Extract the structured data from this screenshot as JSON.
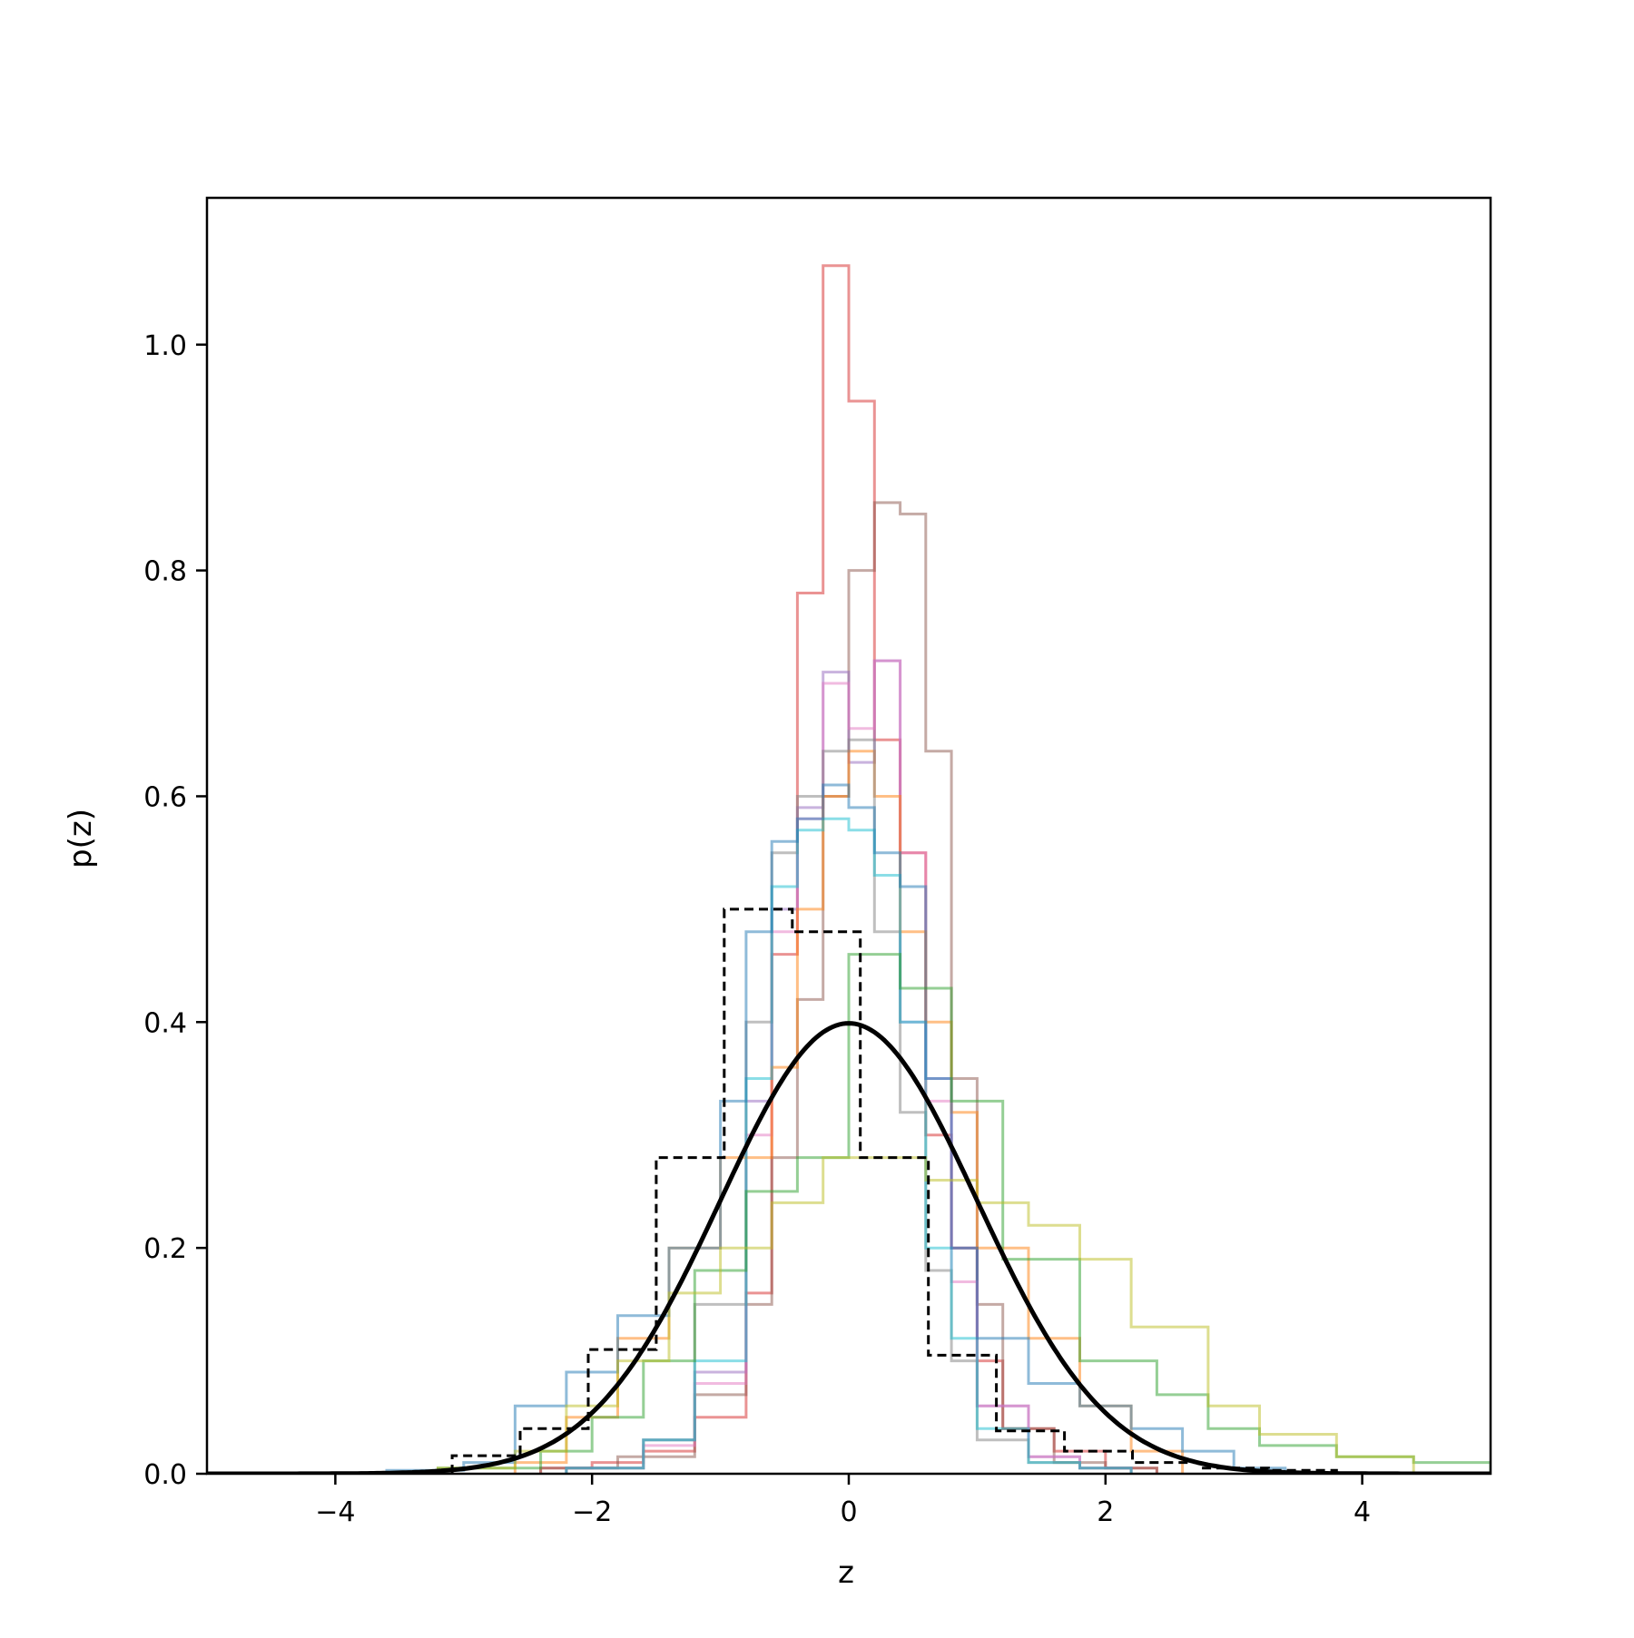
{
  "chart_data": {
    "type": "histogram",
    "title": "",
    "xlabel": "z",
    "ylabel": "p(z)",
    "xlim": [
      -5,
      5
    ],
    "ylim": [
      0,
      1.13
    ],
    "grid": false,
    "legend": "none",
    "xticks": [
      {
        "value": -4,
        "label": "−4"
      },
      {
        "value": -2,
        "label": "−2"
      },
      {
        "value": 0,
        "label": "0"
      },
      {
        "value": 2,
        "label": "2"
      },
      {
        "value": 4,
        "label": "4"
      }
    ],
    "yticks": [
      {
        "value": 0.0,
        "label": "0.0"
      },
      {
        "value": 0.2,
        "label": "0.2"
      },
      {
        "value": 0.4,
        "label": "0.4"
      },
      {
        "value": 0.6,
        "label": "0.6"
      },
      {
        "value": 0.8,
        "label": "0.8"
      },
      {
        "value": 1.0,
        "label": "1.0"
      }
    ],
    "reference_curve": {
      "type": "line",
      "kind": "standard normal density",
      "mean": 0,
      "std": 1,
      "x_range": [
        -5,
        5
      ],
      "color": "#000000"
    },
    "reference_histogram": {
      "style": "dashed",
      "color": "#000000",
      "edges": [
        -3.09,
        -2.56,
        -2.03,
        -1.5,
        -0.97,
        -0.44,
        0.09,
        0.62,
        1.15,
        1.68,
        2.21,
        2.74,
        3.27,
        3.8
      ],
      "values": [
        0.016,
        0.04,
        0.11,
        0.28,
        0.5,
        0.48,
        0.28,
        0.105,
        0.038,
        0.02,
        0.01,
        0.005,
        0.003
      ]
    },
    "series": [
      {
        "color": "#d62728",
        "edges": [
          -2.4,
          -2.0,
          -1.6,
          -1.2,
          -0.8,
          -0.6,
          -0.4,
          -0.2,
          0.0,
          0.2,
          0.4,
          0.6,
          0.8,
          1.0,
          1.2,
          1.6,
          2.0,
          2.4
        ],
        "values": [
          0.005,
          0.01,
          0.02,
          0.05,
          0.16,
          0.46,
          0.78,
          1.07,
          0.95,
          0.65,
          0.55,
          0.3,
          0.2,
          0.1,
          0.04,
          0.02,
          0.005
        ]
      },
      {
        "color": "#8c564b",
        "edges": [
          -2.4,
          -1.8,
          -1.2,
          -0.8,
          -0.6,
          -0.4,
          -0.2,
          0.0,
          0.2,
          0.4,
          0.6,
          0.8,
          1.0,
          1.2,
          1.6,
          2.0,
          2.4
        ],
        "values": [
          0.005,
          0.015,
          0.07,
          0.15,
          0.28,
          0.42,
          0.6,
          0.8,
          0.86,
          0.85,
          0.64,
          0.35,
          0.15,
          0.04,
          0.01,
          0.005
        ]
      },
      {
        "color": "#9467bd",
        "edges": [
          -2.2,
          -1.6,
          -1.2,
          -0.8,
          -0.6,
          -0.4,
          -0.2,
          0.0,
          0.2,
          0.4,
          0.6,
          0.8,
          1.0,
          1.4,
          1.8,
          2.2
        ],
        "values": [
          0.005,
          0.03,
          0.09,
          0.33,
          0.5,
          0.59,
          0.71,
          0.63,
          0.72,
          0.4,
          0.35,
          0.2,
          0.06,
          0.015,
          0.005
        ]
      },
      {
        "color": "#e377c2",
        "edges": [
          -2.2,
          -1.6,
          -1.2,
          -0.8,
          -0.6,
          -0.4,
          -0.2,
          0.0,
          0.2,
          0.4,
          0.6,
          0.8,
          1.0,
          1.4,
          1.8,
          2.2
        ],
        "values": [
          0.005,
          0.025,
          0.08,
          0.3,
          0.48,
          0.58,
          0.7,
          0.66,
          0.72,
          0.55,
          0.33,
          0.17,
          0.06,
          0.015,
          0.005
        ]
      },
      {
        "color": "#ff7f0e",
        "edges": [
          -2.6,
          -2.2,
          -1.8,
          -1.4,
          -1.0,
          -0.6,
          -0.4,
          -0.2,
          0.0,
          0.2,
          0.4,
          0.6,
          0.8,
          1.0,
          1.4,
          1.8,
          2.2,
          2.6
        ],
        "values": [
          0.01,
          0.05,
          0.12,
          0.2,
          0.28,
          0.36,
          0.5,
          0.6,
          0.64,
          0.6,
          0.48,
          0.4,
          0.32,
          0.2,
          0.12,
          0.06,
          0.02
        ]
      },
      {
        "color": "#7f7f7f",
        "edges": [
          -2.2,
          -1.6,
          -1.2,
          -0.8,
          -0.6,
          -0.4,
          -0.2,
          0.0,
          0.2,
          0.4,
          0.6,
          0.8,
          1.0,
          1.4,
          1.8,
          2.2
        ],
        "values": [
          0.005,
          0.03,
          0.15,
          0.4,
          0.55,
          0.6,
          0.64,
          0.65,
          0.48,
          0.32,
          0.18,
          0.1,
          0.03,
          0.01,
          0.005
        ]
      },
      {
        "color": "#17becf",
        "edges": [
          -2.2,
          -1.6,
          -1.2,
          -0.8,
          -0.6,
          -0.4,
          -0.2,
          0.0,
          0.2,
          0.4,
          0.6,
          0.8,
          1.0,
          1.4,
          1.8,
          2.2
        ],
        "values": [
          0.005,
          0.03,
          0.1,
          0.35,
          0.52,
          0.57,
          0.58,
          0.57,
          0.53,
          0.4,
          0.2,
          0.12,
          0.04,
          0.01,
          0.005
        ]
      },
      {
        "color": "#1f77b4",
        "edges": [
          -3.6,
          -3.0,
          -2.6,
          -2.2,
          -1.8,
          -1.4,
          -1.0,
          -0.8,
          -0.6,
          -0.4,
          -0.2,
          0.0,
          0.2,
          0.4,
          0.6,
          0.8,
          1.0,
          1.4,
          1.8,
          2.2,
          2.6,
          3.0,
          3.4
        ],
        "values": [
          0.003,
          0.01,
          0.06,
          0.09,
          0.14,
          0.2,
          0.33,
          0.48,
          0.56,
          0.58,
          0.61,
          0.59,
          0.55,
          0.52,
          0.35,
          0.2,
          0.12,
          0.08,
          0.06,
          0.04,
          0.02,
          0.005
        ]
      },
      {
        "color": "#2ca02c",
        "edges": [
          -3.2,
          -2.4,
          -2.0,
          -1.6,
          -1.2,
          -0.8,
          -0.4,
          0.0,
          0.4,
          0.8,
          1.2,
          1.8,
          2.4,
          2.8,
          3.2,
          3.8,
          4.4,
          5.0
        ],
        "values": [
          0.005,
          0.02,
          0.05,
          0.1,
          0.18,
          0.25,
          0.28,
          0.46,
          0.43,
          0.33,
          0.19,
          0.1,
          0.07,
          0.04,
          0.025,
          0.015,
          0.01
        ]
      },
      {
        "color": "#bcbd22",
        "edges": [
          -3.2,
          -2.6,
          -2.2,
          -1.8,
          -1.4,
          -1.0,
          -0.6,
          -0.2,
          0.2,
          0.6,
          1.0,
          1.4,
          1.8,
          2.2,
          2.8,
          3.2,
          3.8,
          4.4
        ],
        "values": [
          0.005,
          0.02,
          0.06,
          0.1,
          0.16,
          0.2,
          0.24,
          0.28,
          0.28,
          0.26,
          0.24,
          0.22,
          0.19,
          0.13,
          0.06,
          0.035,
          0.015
        ]
      }
    ]
  }
}
